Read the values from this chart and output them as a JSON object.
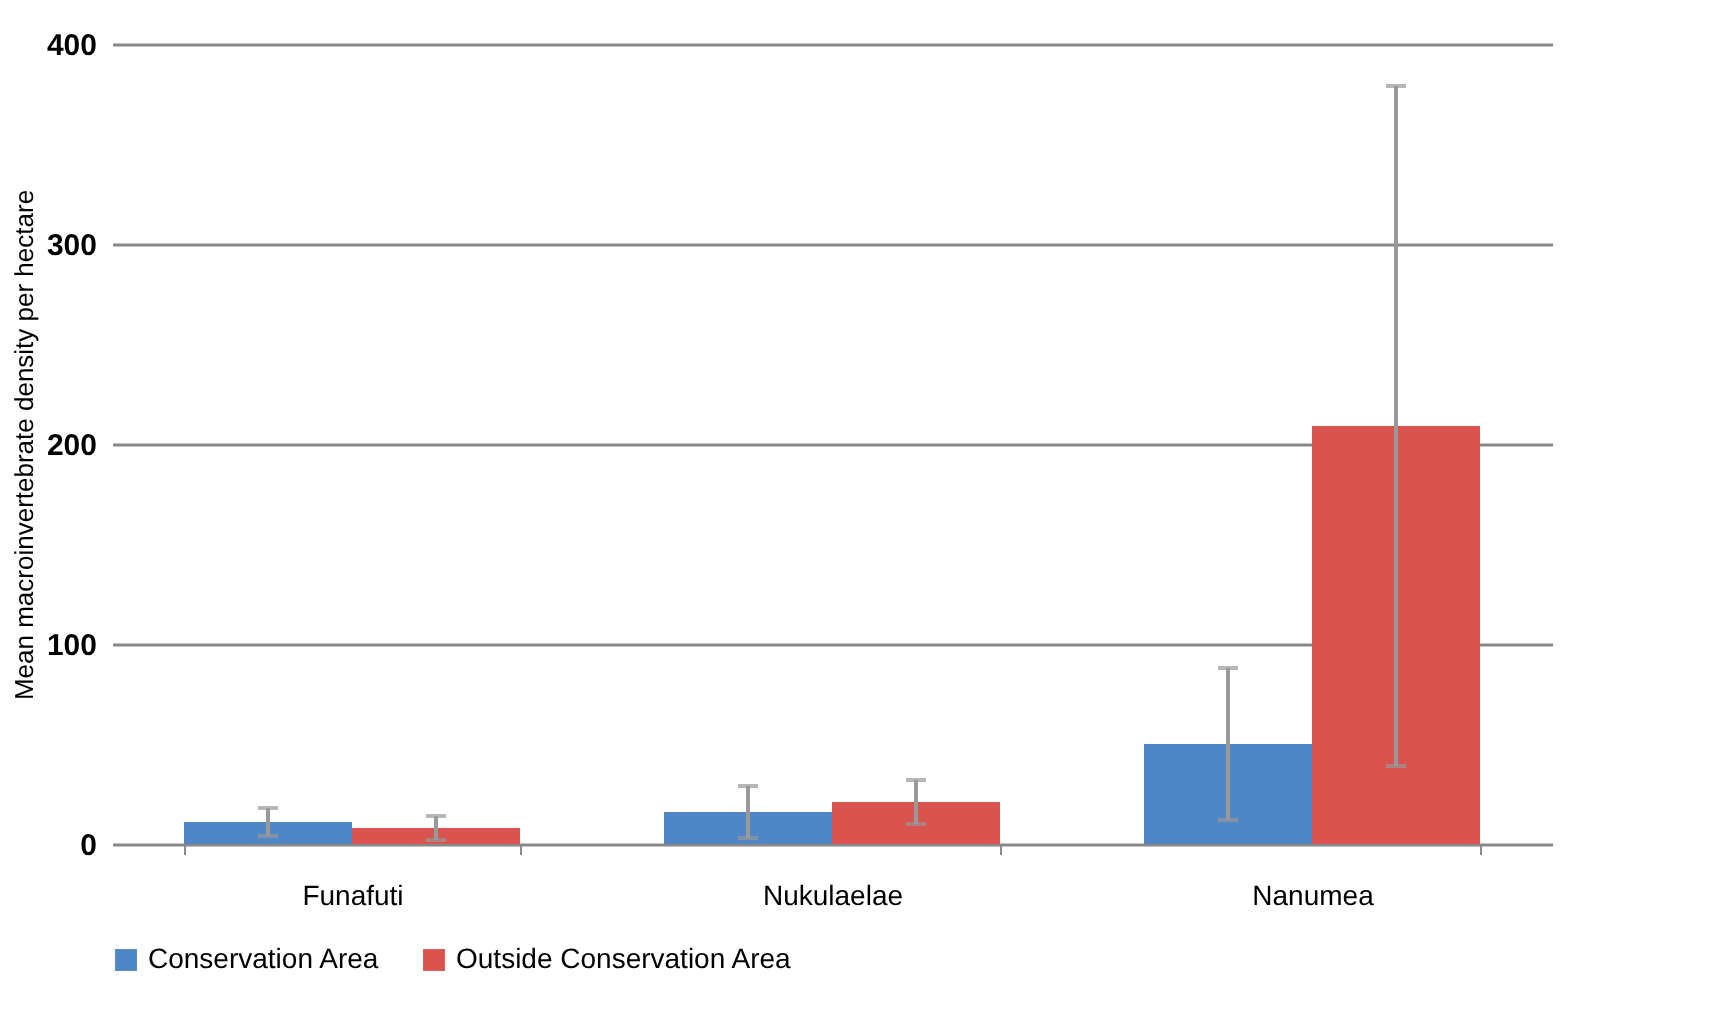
{
  "chart_data": {
    "type": "bar",
    "ylabel": "Mean macroinvertebrate density per hectare",
    "categories": [
      "Funafuti",
      "Nukulaelae",
      "Nanumea"
    ],
    "series": [
      {
        "name": "Conservation Area",
        "color": "#4f86c6",
        "values": [
          11,
          16,
          50
        ],
        "errors": [
          7,
          13,
          38
        ]
      },
      {
        "name": "Outside Conservation Area",
        "color": "#d9534f",
        "values": [
          8,
          21,
          209
        ],
        "errors": [
          6,
          11,
          170
        ]
      }
    ],
    "ylim": [
      0,
      400
    ],
    "yticks": [
      0,
      100,
      200,
      300,
      400
    ],
    "grid": "y",
    "legend": "bottom"
  }
}
